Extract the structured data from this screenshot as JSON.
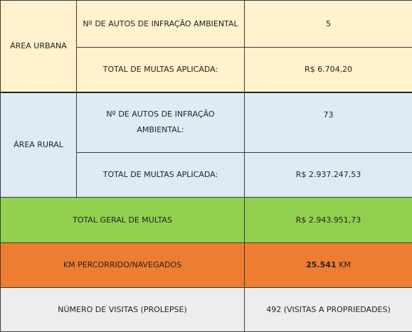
{
  "rows": {
    "urbana": {
      "section": "ÁREA URBANA",
      "autos_label": "Nº DE AUTOS DE INFRAÇÃO AMBIENTAL",
      "autos_value": "5",
      "multas_label": "TOTAL DE MULTAS APLICADA:",
      "multas_value": "R$ 6.704,20"
    },
    "rural": {
      "section": "ÁREA RURAL",
      "autos_label": "Nº DE AUTOS DE INFRAÇÃO AMBIENTAL:",
      "autos_value": "73",
      "multas_label": "TOTAL DE MULTAS APLICADA:",
      "multas_value": "R$ 2.937.247,53"
    },
    "geral": {
      "label": "TOTAL GERAL DE MULTAS",
      "value": "R$ 2.943.951,73"
    },
    "km": {
      "label": "KM PERCORRIDO/NAVEGADOS",
      "value": "25.541",
      "unit": "KM"
    },
    "visitas": {
      "label": "NÚMERO DE VISITAS (PROLEPSE)",
      "value": "492 (VISITAS A PROPRIEDADES)"
    }
  },
  "colors": {
    "urbana": "#fff2cc",
    "rural": "#ddebf7",
    "geral": "#92d050",
    "km": "#ed7d31",
    "visitas": "#ededed"
  }
}
